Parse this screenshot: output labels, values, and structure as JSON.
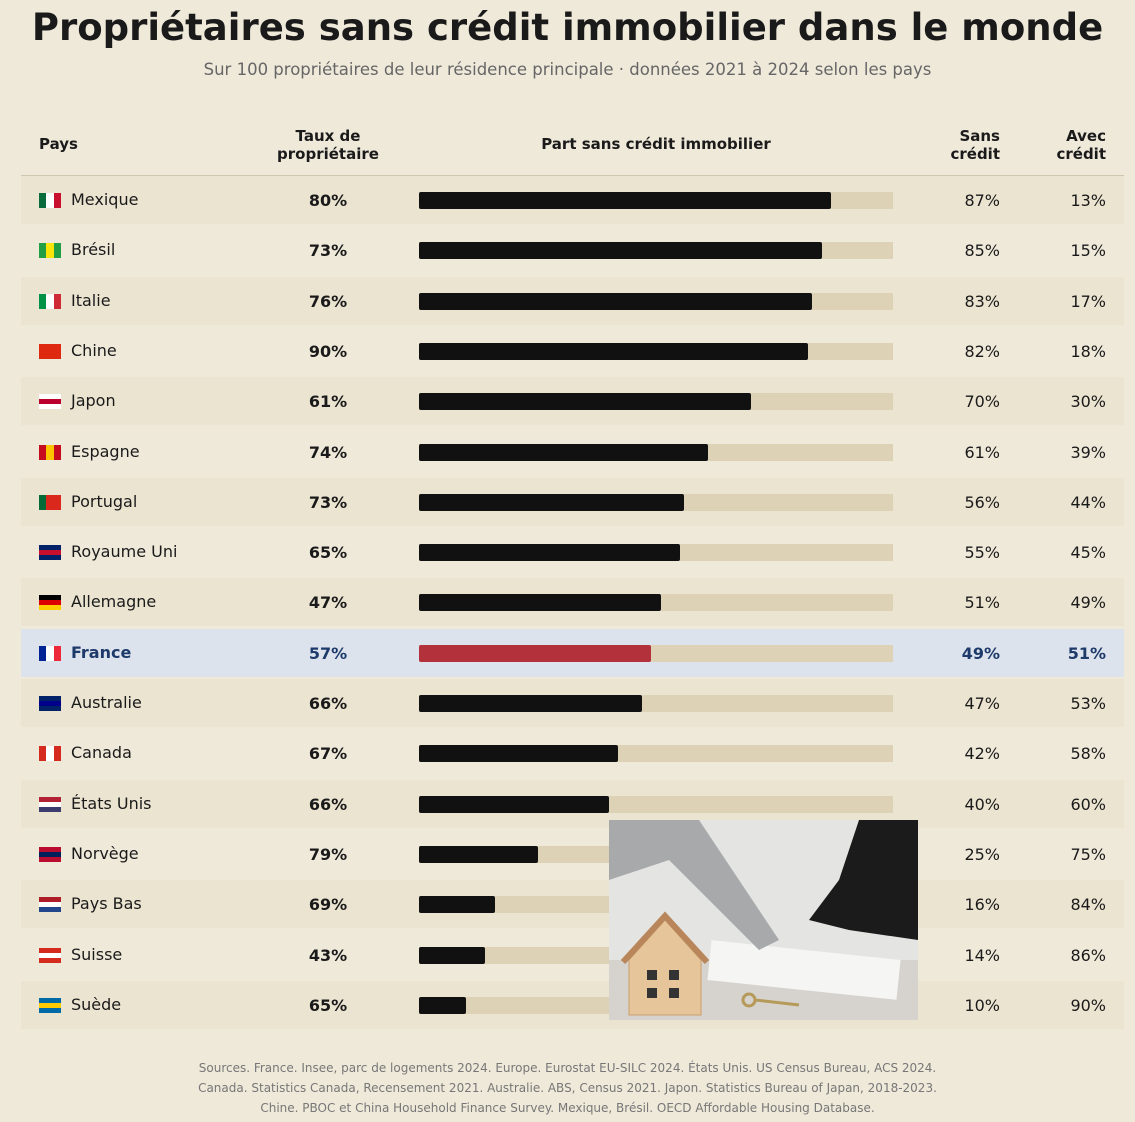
{
  "chart_data": {
    "type": "bar",
    "orientation": "horizontal",
    "title": "Propriétaires sans crédit immobilier dans le monde",
    "subtitle": "Sur 100 propriétaires de leur résidence principale · données 2021 à 2024 selon les pays",
    "country_header": "Pays",
    "bar_header": "Part sans crédit immobilier",
    "categories": [
      "Mexique",
      "Brésil",
      "Italie",
      "Chine",
      "Japon",
      "Espagne",
      "Portugal",
      "Royaume Uni",
      "Allemagne",
      "France",
      "Australie",
      "Canada",
      "États Unis",
      "Norvège",
      "Pays Bas",
      "Suisse",
      "Suède"
    ],
    "ownership": {
      "name": "Taux de propriétaire",
      "values": [
        80,
        73,
        76,
        90,
        61,
        74,
        73,
        65,
        47,
        57,
        66,
        67,
        66,
        79,
        69,
        43,
        65
      ],
      "value_labels": [
        "80%",
        "73%",
        "76%",
        "90%",
        "61%",
        "74%",
        "73%",
        "65%",
        "47%",
        "57%",
        "66%",
        "67%",
        "66%",
        "79%",
        "69%",
        "43%",
        "65%"
      ]
    },
    "series": [
      {
        "name": "Sans crédit",
        "color": "#111111",
        "values": [
          87,
          85,
          83,
          82,
          70,
          61,
          56,
          55,
          51,
          49,
          47,
          42,
          40,
          25,
          16,
          14,
          10
        ],
        "value_labels": [
          "87%",
          "85%",
          "83%",
          "82%",
          "70%",
          "61%",
          "56%",
          "55%",
          "51%",
          "49%",
          "47%",
          "42%",
          "40%",
          "25%",
          "16%",
          "14%",
          "10%"
        ]
      }
    ],
    "with_credit": {
      "name": "Avec crédit",
      "values": [
        13,
        15,
        17,
        18,
        30,
        39,
        44,
        45,
        49,
        51,
        53,
        58,
        60,
        75,
        84,
        86,
        90
      ],
      "value_labels": [
        "13%",
        "15%",
        "17%",
        "18%",
        "30%",
        "39%",
        "44%",
        "45%",
        "49%",
        "51%",
        "53%",
        "58%",
        "60%",
        "75%",
        "84%",
        "86%",
        "90%"
      ]
    },
    "xlim": [
      0,
      100
    ],
    "track_color": "#ddd2b5",
    "highlight": "France",
    "highlight_color": "#b3313b",
    "sources": [
      "Sources. France. Insee, parc de logements 2024. Europe. Eurostat EU-SILC 2024. États Unis. US Census Bureau, ACS 2024.",
      "Canada. Statistics Canada, Recensement 2021. Australie. ABS, Census 2021. Japon. Statistics Bureau of Japan, 2018-2023.",
      "Chine. PBOC et China Household Finance Survey. Mexique, Brésil. OECD Affordable Housing Database."
    ]
  }
}
